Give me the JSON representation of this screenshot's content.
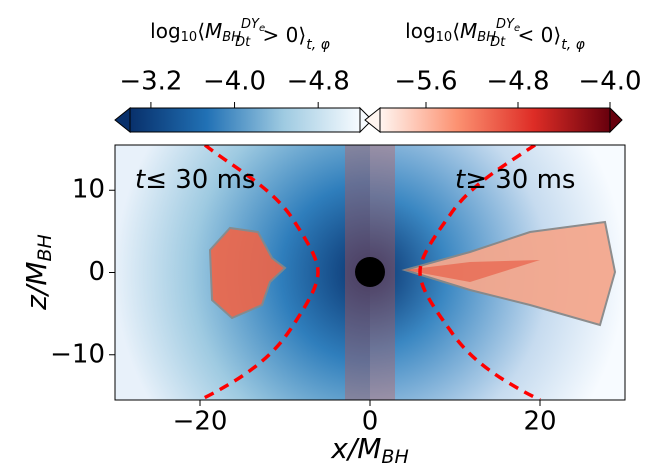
{
  "chart_data": {
    "type": "heatmap",
    "xlabel": [
      "x/M",
      "BH"
    ],
    "ylabel": [
      "z/M",
      "BH"
    ],
    "xlim": [
      -30,
      30
    ],
    "ylim": [
      -15.5,
      15.5
    ],
    "xticks": [
      {
        "value": -20,
        "label": "−20"
      },
      0,
      20
    ],
    "yticks": [
      {
        "value": -10,
        "label": "−10"
      },
      0,
      10
    ],
    "annotations": [
      [
        "t",
        "≤  30 ms"
      ],
      [
        "t",
        "≥  30 ms"
      ]
    ],
    "colorbars": [
      {
        "label": [
          "log",
          "10",
          "⟨",
          "M",
          "BH",
          "DY",
          "e",
          "Dt",
          " > 0",
          "⟩",
          "t, φ"
        ],
        "lim": [
          -3.0,
          -5.2
        ],
        "colors": [
          "#08306b",
          "#2171b5",
          "#9ecae1",
          "#f7fbff"
        ],
        "ticks": [
          {
            "value": -3.2,
            "label": "−3.2"
          },
          {
            "value": -4.0,
            "label": "−4.0"
          },
          {
            "value": -4.8,
            "label": "−4.8"
          }
        ]
      },
      {
        "label": [
          "log",
          "10",
          "⟨",
          "M",
          "BH",
          "DY",
          "e",
          "Dt",
          " < 0",
          "⟩",
          "t, φ"
        ],
        "lim": [
          -6.0,
          -4.0
        ],
        "colors": [
          "#fff5f0",
          "#fc9272",
          "#de2d26",
          "#67000d"
        ],
        "ticks": [
          {
            "value": -5.6,
            "label": "−5.6"
          },
          {
            "value": -4.8,
            "label": "−4.8"
          },
          {
            "value": -4.0,
            "label": "−4.0"
          }
        ]
      }
    ]
  }
}
